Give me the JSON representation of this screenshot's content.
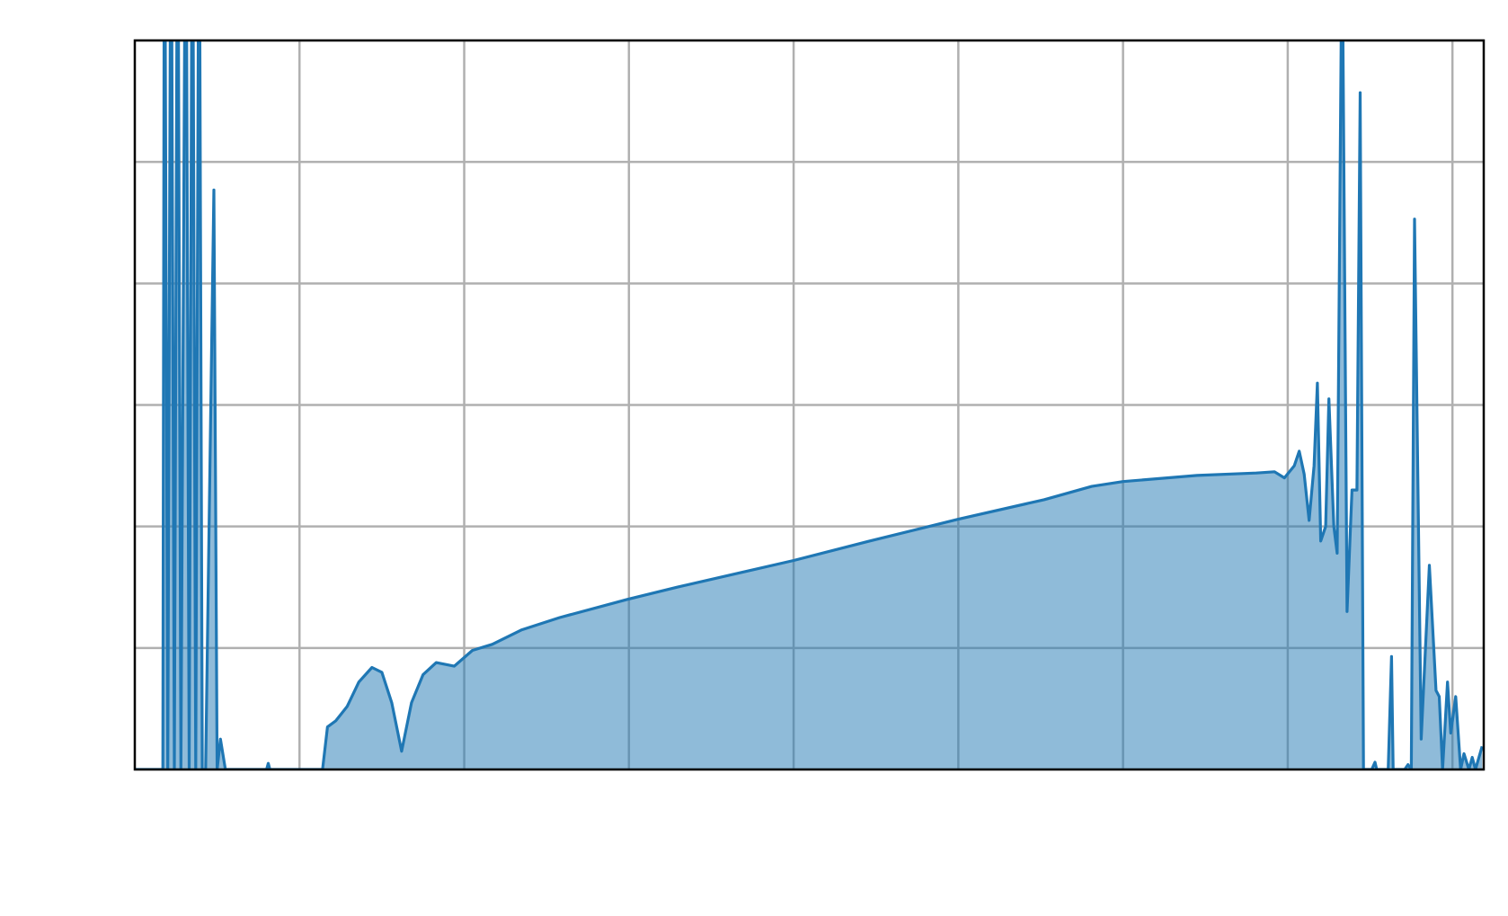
{
  "chart_data": {
    "type": "area",
    "color": "#1f77b4",
    "grid": true,
    "xlim": [
      0,
      8.19
    ],
    "ylim": [
      0,
      6
    ],
    "xticks": [
      1,
      2,
      3,
      4,
      5,
      6,
      7,
      8
    ],
    "yticks": [
      0,
      1,
      2,
      3,
      4,
      5,
      6
    ],
    "x": [
      0,
      0.17,
      0.18,
      0.2,
      0.22,
      0.24,
      0.26,
      0.28,
      0.31,
      0.33,
      0.35,
      0.37,
      0.39,
      0.41,
      0.43,
      0.48,
      0.5,
      0.52,
      0.55,
      0.8,
      0.81,
      0.82,
      1.14,
      1.17,
      1.22,
      1.29,
      1.36,
      1.44,
      1.5,
      1.56,
      1.62,
      1.68,
      1.75,
      1.83,
      1.94,
      2.05,
      2.17,
      2.35,
      2.58,
      2.99,
      3.29,
      4.0,
      4.46,
      5.0,
      5.52,
      5.81,
      6.0,
      6.45,
      6.81,
      6.92,
      6.98,
      7.04,
      7.07,
      7.1,
      7.13,
      7.16,
      7.18,
      7.2,
      7.23,
      7.25,
      7.28,
      7.3,
      7.33,
      7.36,
      7.39,
      7.42,
      7.44,
      7.46,
      7.51,
      7.53,
      7.54,
      7.61,
      7.63,
      7.64,
      7.71,
      7.73,
      7.75,
      7.77,
      7.81,
      7.86,
      7.9,
      7.92,
      7.94,
      7.97,
      7.99,
      8.02,
      8.05,
      8.07,
      8.1,
      8.12,
      8.14,
      8.18
    ],
    "values": [
      0,
      0,
      8,
      0,
      8,
      0,
      8,
      0,
      8,
      0,
      8,
      0,
      8,
      0,
      0,
      4.77,
      0,
      0.25,
      0,
      0,
      0.05,
      0,
      0,
      0.35,
      0.4,
      0.52,
      0.72,
      0.84,
      0.8,
      0.55,
      0.15,
      0.55,
      0.78,
      0.88,
      0.85,
      0.98,
      1.03,
      1.15,
      1.25,
      1.4,
      1.5,
      1.72,
      1.88,
      2.06,
      2.22,
      2.33,
      2.37,
      2.42,
      2.44,
      2.45,
      2.4,
      2.5,
      2.62,
      2.43,
      2.05,
      2.5,
      3.18,
      1.88,
      2.0,
      3.05,
      2.0,
      1.78,
      7,
      1.3,
      2.3,
      2.3,
      5.57,
      0,
      0,
      0.06,
      0,
      0,
      0.93,
      0,
      0,
      0.04,
      0,
      4.53,
      0.25,
      1.68,
      0.65,
      0.6,
      0,
      0.72,
      0.3,
      0.6,
      0,
      0.13,
      0,
      0.1,
      0,
      0.19
    ]
  }
}
